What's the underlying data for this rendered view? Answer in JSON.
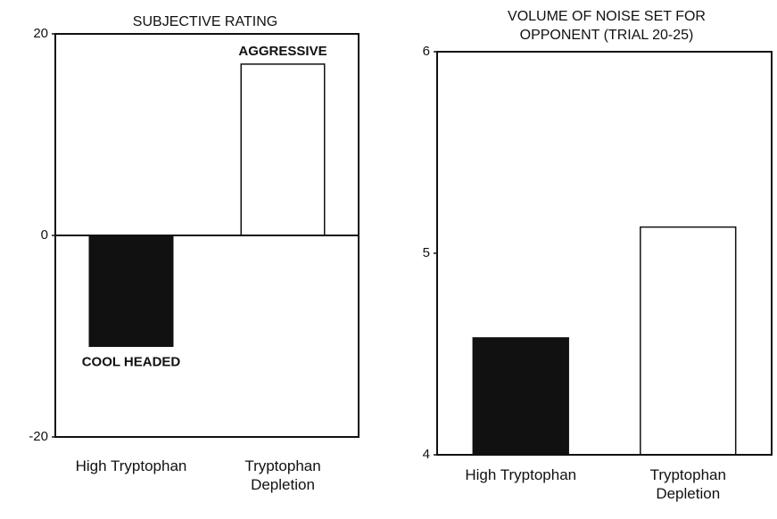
{
  "chart_data": [
    {
      "type": "bar",
      "title": "SUBJECTIVE RATING",
      "categories": [
        "High Tryptophan",
        "Tryptophan Depletion"
      ],
      "values": [
        -11,
        17
      ],
      "colors": [
        "#111111",
        "#ffffff"
      ],
      "ylim": [
        -20,
        20
      ],
      "yticks": [
        -20,
        0,
        20
      ],
      "annotations": [
        "COOL HEADED",
        "AGGRESSIVE"
      ]
    },
    {
      "type": "bar",
      "title": "VOLUME OF NOISE SET FOR OPPONENT (TRIAL 20-25)",
      "categories": [
        "High Tryptophan",
        "Tryptophan Depletion"
      ],
      "values": [
        4.58,
        5.13
      ],
      "colors": [
        "#111111",
        "#ffffff"
      ],
      "ylim": [
        4,
        6
      ],
      "yticks": [
        4,
        5,
        6
      ]
    }
  ]
}
